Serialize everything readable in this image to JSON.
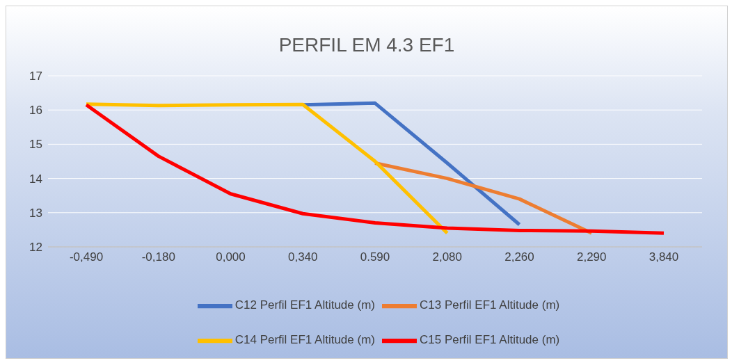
{
  "chart_data": {
    "type": "line",
    "title": "PERFIL EM 4.3 EF1",
    "categories": [
      "-0,490",
      "-0,180",
      "0,000",
      "0,340",
      "0.590",
      "2,080",
      "2,260",
      "2,290",
      "3,840"
    ],
    "series": [
      {
        "name": "C12 Perfil EF1 Altitude (m)",
        "color": "#4472c4",
        "values": [
          null,
          null,
          null,
          16.15,
          16.2,
          14.45,
          12.65,
          null,
          null
        ]
      },
      {
        "name": "C13 Perfil EF1 Altitude (m)",
        "color": "#ed7d31",
        "values": [
          null,
          null,
          null,
          null,
          14.45,
          14.0,
          13.4,
          12.4,
          null
        ]
      },
      {
        "name": "C14 Perfil EF1 Altitude (m)",
        "color": "#ffc000",
        "values": [
          16.17,
          16.13,
          16.15,
          16.16,
          14.5,
          12.4,
          null,
          null,
          null
        ]
      },
      {
        "name": "C15 Perfil EF1 Altitude (m)",
        "color": "#ff0000",
        "values": [
          16.15,
          14.65,
          13.55,
          12.97,
          12.7,
          12.55,
          12.48,
          12.46,
          12.4
        ]
      }
    ],
    "ylim": [
      12,
      17
    ],
    "yticks": [
      12,
      13,
      14,
      15,
      16,
      17
    ],
    "grid": "y",
    "legend": "bottom",
    "marker": "none",
    "line_style": "solid"
  }
}
